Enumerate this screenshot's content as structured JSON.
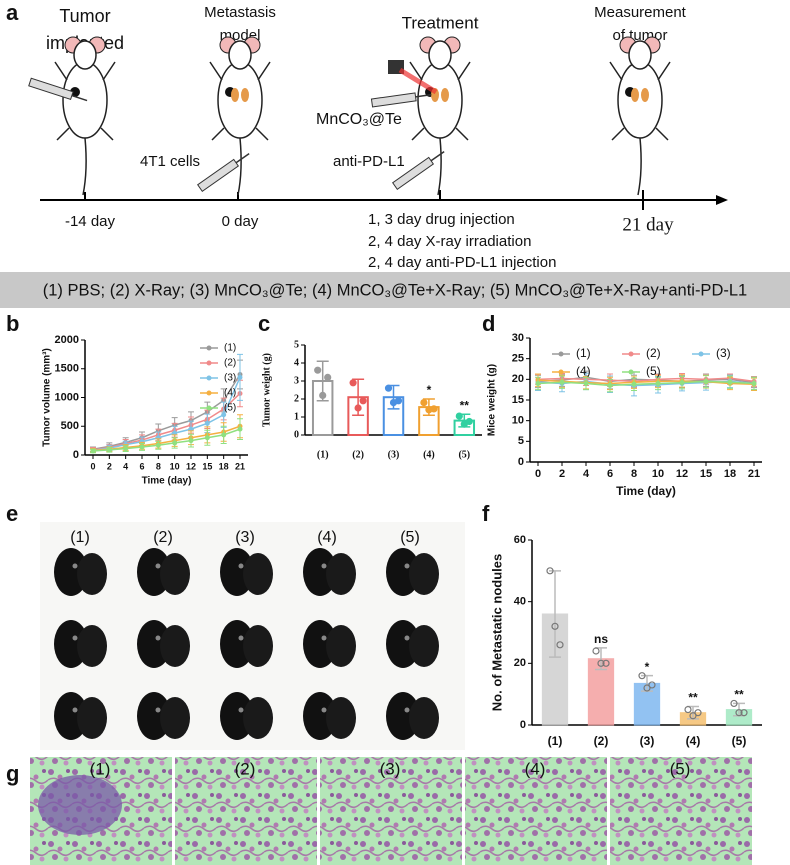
{
  "panel_letters": [
    "a",
    "b",
    "c",
    "d",
    "e",
    "f",
    "g"
  ],
  "schematic": {
    "stages": [
      {
        "lines": [
          "Tumor",
          "implanted"
        ]
      },
      {
        "lines": [
          "Metastasis",
          "model"
        ]
      },
      {
        "lines": [
          "Treatment"
        ]
      },
      {
        "lines": [
          "Measurement",
          "of tumor"
        ]
      }
    ],
    "agents": [
      "MnCO₃@Te",
      "4T1 cells",
      "anti-PD-L1"
    ],
    "days": [
      "-14 day",
      "0 day",
      "21 day"
    ],
    "treatment_notes": [
      "1, 3 day drug injection",
      "2, 4 day X-ray irradiation",
      "2, 4 day anti-PD-L1 injection"
    ]
  },
  "groups_legend": "(1) PBS; (2) X-Ray; (3) MnCO₃@Te; (4) MnCO₃@Te+X-Ray; (5) MnCO₃@Te+X-Ray+anti-PD-L1",
  "photo_labels": [
    "(1)",
    "(2)",
    "(3)",
    "(4)",
    "(5)"
  ],
  "histology_labels": [
    "(1)",
    "(2)",
    "(3)",
    "(4)",
    "(5)"
  ],
  "chart_data": [
    {
      "type": "line",
      "ylabel": "Tumor volume (mm³)",
      "xlabel": "Time (day)",
      "categories": [
        "0",
        "2",
        "4",
        "6",
        "8",
        "10",
        "12",
        "15",
        "18",
        "21"
      ],
      "ylim": [
        0,
        2000
      ],
      "yticks": [
        0,
        500,
        1000,
        1500,
        2000
      ],
      "legend": "right",
      "series": [
        {
          "name": "(1)",
          "color": "#9a9a9a",
          "values": [
            100,
            150,
            220,
            300,
            420,
            520,
            600,
            750,
            950,
            1400
          ],
          "errors": [
            40,
            60,
            80,
            100,
            120,
            130,
            150,
            170,
            200,
            250
          ]
        },
        {
          "name": "(2)",
          "color": "#f08a8a",
          "values": [
            90,
            130,
            200,
            260,
            350,
            430,
            520,
            620,
            800,
            1070
          ],
          "errors": [
            40,
            50,
            70,
            90,
            100,
            120,
            140,
            160,
            190,
            230
          ]
        },
        {
          "name": "(3)",
          "color": "#7ec3e6",
          "values": [
            80,
            120,
            180,
            230,
            300,
            380,
            450,
            550,
            700,
            1350
          ],
          "errors": [
            30,
            50,
            60,
            80,
            100,
            120,
            140,
            160,
            220,
            400
          ]
        },
        {
          "name": "(4)",
          "color": "#f5b041",
          "values": [
            80,
            100,
            130,
            160,
            200,
            250,
            300,
            350,
            400,
            500
          ],
          "errors": [
            30,
            40,
            50,
            60,
            80,
            100,
            120,
            140,
            160,
            200
          ]
        },
        {
          "name": "(5)",
          "color": "#90e080",
          "values": [
            70,
            90,
            110,
            140,
            170,
            210,
            250,
            300,
            350,
            450
          ],
          "errors": [
            30,
            40,
            50,
            60,
            70,
            90,
            110,
            130,
            150,
            180
          ]
        }
      ]
    },
    {
      "type": "bar",
      "ylabel": "Tumor weight (g)",
      "filled": false,
      "categories": [
        "(1)",
        "(2)",
        "(3)",
        "(4)",
        "(5)"
      ],
      "values": [
        3.0,
        2.1,
        2.1,
        1.55,
        0.8
      ],
      "errors": [
        1.1,
        1.0,
        0.65,
        0.45,
        0.35
      ],
      "colors": [
        "#9a9a9a",
        "#e85a5a",
        "#4a90e2",
        "#f0a030",
        "#30d0a0"
      ],
      "points": [
        [
          3.6,
          2.2,
          3.2
        ],
        [
          2.9,
          1.5,
          1.9
        ],
        [
          2.6,
          1.8,
          1.9
        ],
        [
          1.8,
          1.4,
          1.45
        ],
        [
          1.05,
          0.6,
          0.75
        ]
      ],
      "annotations": [
        null,
        null,
        null,
        "*",
        "**"
      ],
      "ylim": [
        0,
        5
      ],
      "yticks": [
        0,
        1,
        2,
        3,
        4,
        5
      ]
    },
    {
      "type": "line",
      "ylabel": "Mice weight (g)",
      "xlabel": "Time (day)",
      "categories": [
        "0",
        "2",
        "4",
        "6",
        "8",
        "10",
        "12",
        "15",
        "18",
        "21"
      ],
      "ylim": [
        0,
        30
      ],
      "yticks": [
        0,
        5,
        10,
        15,
        20,
        25,
        30
      ],
      "legend": "top",
      "series": [
        {
          "name": "(1)",
          "color": "#9a9a9a",
          "values": [
            19.5,
            19.8,
            20.5,
            19.5,
            20,
            19.8,
            19.5,
            19.8,
            20,
            19.2
          ],
          "errors": [
            1.5,
            1.5,
            1.5,
            1.8,
            1.8,
            1.5,
            1.5,
            1.5,
            1.2,
            1.2
          ]
        },
        {
          "name": "(2)",
          "color": "#f08a8a",
          "values": [
            20,
            20.2,
            20,
            19.8,
            19.5,
            20,
            20.2,
            20,
            20.3,
            19.5
          ],
          "errors": [
            1.2,
            1.2,
            1.5,
            1.5,
            1.5,
            1.2,
            1.2,
            1.2,
            1.0,
            1.2
          ]
        },
        {
          "name": "(3)",
          "color": "#7ec3e6",
          "values": [
            19.3,
            19,
            19.5,
            18.8,
            18.5,
            18.7,
            19,
            19.2,
            19.5,
            19
          ],
          "errors": [
            2,
            2,
            2,
            2,
            2.5,
            2,
            1.8,
            1.8,
            1.5,
            1.5
          ]
        },
        {
          "name": "(4)",
          "color": "#f5b041",
          "values": [
            19.8,
            19.5,
            19.2,
            19,
            19.3,
            19.5,
            19.6,
            19.4,
            19,
            18.8
          ],
          "errors": [
            1.5,
            1.5,
            1.5,
            1.5,
            1.5,
            1.5,
            1.5,
            1.5,
            1.5,
            1.5
          ]
        },
        {
          "name": "(5)",
          "color": "#90e080",
          "values": [
            19,
            19.3,
            19,
            18.5,
            18.8,
            19,
            19.2,
            19.5,
            19.3,
            19
          ],
          "errors": [
            1.5,
            1.5,
            1.5,
            1.5,
            1.5,
            1.5,
            1.5,
            1.5,
            1.5,
            1.5
          ]
        }
      ]
    },
    {
      "type": "bar",
      "ylabel": "No. of Metastatic nodules",
      "filled": true,
      "categories": [
        "(1)",
        "(2)",
        "(3)",
        "(4)",
        "(5)"
      ],
      "values": [
        36,
        21.5,
        13.5,
        4,
        5
      ],
      "errors": [
        14,
        3.5,
        2.5,
        2,
        2
      ],
      "colors": [
        "#cfcfcf",
        "#f4a0a0",
        "#7fb8f0",
        "#f5c070",
        "#a0e8c0"
      ],
      "points": [
        [
          50,
          32,
          26
        ],
        [
          24,
          20,
          20
        ],
        [
          16,
          12,
          13
        ],
        [
          5,
          3,
          4
        ],
        [
          7,
          4,
          4
        ]
      ],
      "annotations": [
        null,
        "ns",
        "*",
        "**",
        "**"
      ],
      "ylim": [
        0,
        60
      ],
      "yticks": [
        0,
        20,
        40,
        60
      ]
    }
  ]
}
